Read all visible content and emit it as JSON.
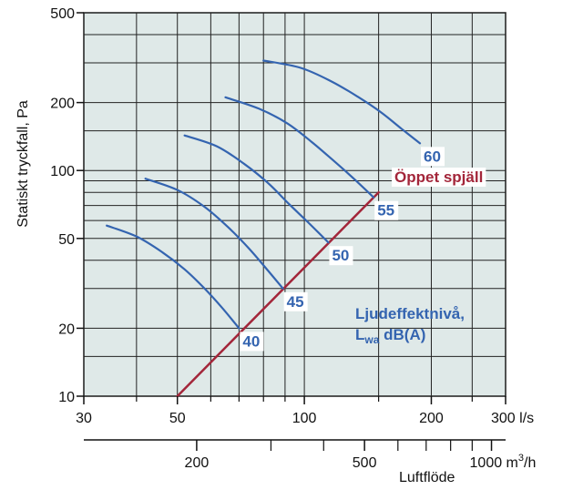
{
  "chart_data": {
    "type": "line",
    "title": "",
    "ylabel": "Statiskt tryckfall, Pa",
    "xlabel_secondary": "Luftflöde",
    "x_scale": "log",
    "y_scale": "log",
    "xlim": [
      30,
      300
    ],
    "ylim": [
      10,
      500
    ],
    "secondary_xlim": [
      108,
      1080
    ],
    "grid": true,
    "background": "#dfe9e8",
    "y_ticks_labeled": [
      {
        "value": 10,
        "label": "10"
      },
      {
        "value": 20,
        "label": "20"
      },
      {
        "value": 50,
        "label": "50"
      },
      {
        "value": 100,
        "label": "100"
      },
      {
        "value": 200,
        "label": "200"
      },
      {
        "value": 500,
        "label": "500"
      }
    ],
    "y_grid": [
      10,
      15,
      20,
      30,
      40,
      50,
      60,
      70,
      80,
      90,
      100,
      150,
      200,
      300,
      400,
      500
    ],
    "x_ticks_labeled": [
      {
        "value": 30,
        "label": "30"
      },
      {
        "value": 50,
        "label": "50"
      },
      {
        "value": 100,
        "label": "100"
      },
      {
        "value": 200,
        "label": "200"
      },
      {
        "value": 300,
        "label": "300 l/s"
      }
    ],
    "x_grid": [
      30,
      40,
      50,
      60,
      70,
      80,
      90,
      100,
      150,
      200,
      250,
      300
    ],
    "x2_ticks_labeled": [
      {
        "value": 200,
        "label": "200"
      },
      {
        "value": 500,
        "label": "500"
      },
      {
        "value": 1000,
        "label": "1000 m³/h"
      }
    ],
    "x2_ticks_minor": [
      300,
      400,
      600,
      700,
      800,
      900
    ],
    "series": [
      {
        "name": "Öppet spjäll",
        "color": "#a3263a",
        "x": [
          50,
          150
        ],
        "y": [
          10,
          80
        ]
      },
      {
        "name": "40",
        "color": "#3464b0",
        "x": [
          34,
          40,
          46,
          52,
          58,
          64,
          70
        ],
        "y": [
          57,
          51,
          43.5,
          36.5,
          30,
          24.5,
          20
        ]
      },
      {
        "name": "45",
        "color": "#3464b0",
        "x": [
          42,
          50,
          58,
          66,
          74,
          82,
          89
        ],
        "y": [
          92,
          82,
          69,
          56,
          45,
          36,
          30
        ]
      },
      {
        "name": "50",
        "color": "#3464b0",
        "x": [
          52,
          62,
          72,
          82,
          92,
          102,
          114
        ],
        "y": [
          143,
          128,
          107,
          88,
          71,
          59,
          48
        ]
      },
      {
        "name": "55",
        "color": "#3464b0",
        "x": [
          65,
          78,
          91,
          104,
          117,
          131,
          146
        ],
        "y": [
          211,
          188,
          162,
          134,
          111,
          92,
          76
        ]
      },
      {
        "name": "60",
        "color": "#3464b0",
        "x": [
          80,
          98,
          116,
          134,
          152,
          170,
          188
        ],
        "y": [
          307,
          285,
          248,
          212,
          181,
          153,
          132
        ]
      }
    ],
    "annotations": [
      {
        "text": "Öppet spjäll",
        "color": "#a3263a"
      },
      {
        "text_main": "Ljudeffektnivå,",
        "text_L": "L",
        "text_sub": "wa",
        "text_rest": " dB(A)",
        "color": "#3464b0"
      }
    ]
  }
}
